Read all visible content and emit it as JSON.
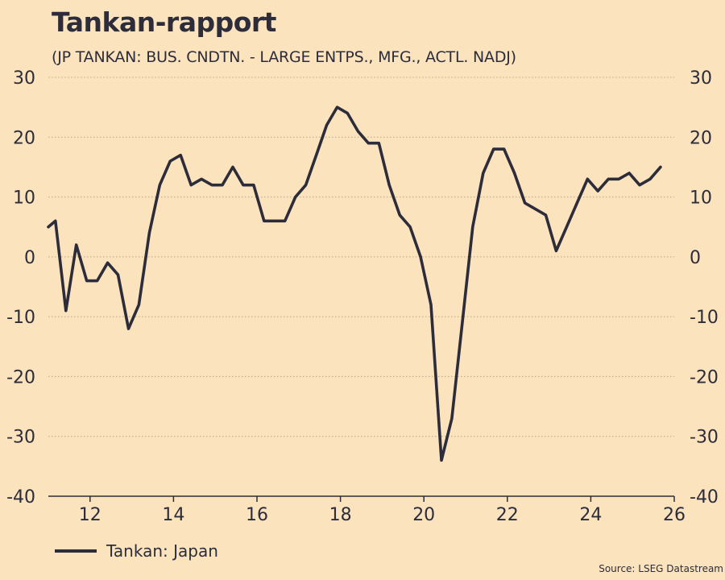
{
  "chart_data": {
    "type": "line",
    "title": "Tankan-rapport",
    "subtitle": "(JP TANKAN: BUS. CNDTN. - LARGE ENTPS., MFG., ACTL. NADJ)",
    "source": "Source: LSEG Datastream",
    "xlim": [
      2011.0,
      2026.0
    ],
    "ylim": [
      -40,
      30
    ],
    "yticks": [
      30,
      20,
      10,
      0,
      -10,
      -20,
      -30,
      -40
    ],
    "xticks": [
      12,
      14,
      16,
      18,
      20,
      22,
      24,
      26
    ],
    "grid": "horizontal-dotted",
    "legend": "bottom-left",
    "series": [
      {
        "name": "Tankan: Japan",
        "color": "#2c2c3a",
        "x": [
          2011.0,
          2011.17,
          2011.42,
          2011.67,
          2011.92,
          2012.17,
          2012.42,
          2012.67,
          2012.92,
          2013.17,
          2013.42,
          2013.67,
          2013.92,
          2014.17,
          2014.42,
          2014.67,
          2014.92,
          2015.17,
          2015.42,
          2015.67,
          2015.92,
          2016.17,
          2016.42,
          2016.67,
          2016.92,
          2017.17,
          2017.42,
          2017.67,
          2017.92,
          2018.17,
          2018.42,
          2018.67,
          2018.92,
          2019.17,
          2019.42,
          2019.67,
          2019.92,
          2020.17,
          2020.42,
          2020.67,
          2020.92,
          2021.17,
          2021.42,
          2021.67,
          2021.92,
          2022.17,
          2022.42,
          2022.67,
          2022.92,
          2023.17,
          2023.42,
          2023.67,
          2023.92,
          2024.17,
          2024.42,
          2024.67,
          2024.92,
          2025.17,
          2025.42,
          2025.67
        ],
        "values": [
          5,
          6,
          -9,
          2,
          -4,
          -4,
          -1,
          -3,
          -12,
          -8,
          4,
          12,
          16,
          17,
          12,
          13,
          12,
          12,
          15,
          12,
          12,
          6,
          6,
          6,
          10,
          12,
          17,
          22,
          25,
          24,
          21,
          19,
          19,
          12,
          7,
          5,
          0,
          -8,
          -34,
          -27,
          -11,
          5,
          14,
          18,
          18,
          14,
          9,
          8,
          7,
          1,
          5,
          9,
          13,
          11,
          13,
          13,
          14,
          12,
          13,
          15
        ]
      }
    ]
  }
}
